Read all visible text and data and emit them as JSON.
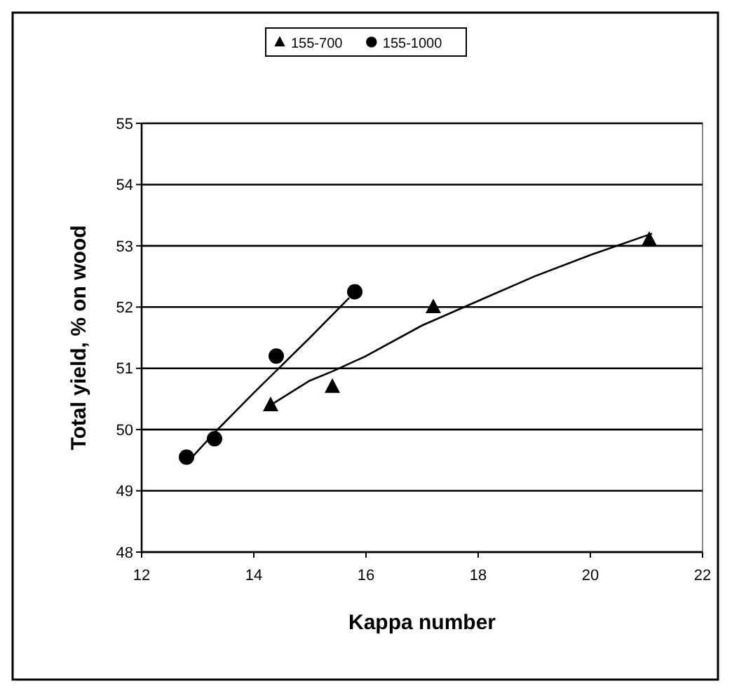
{
  "chart_data": {
    "type": "scatter",
    "xlabel": "Kappa number",
    "ylabel": "Total yield, % on wood",
    "xlim": [
      12,
      22
    ],
    "xticks": [
      12,
      14,
      16,
      18,
      20,
      22
    ],
    "ylim": [
      48,
      55
    ],
    "yticks": [
      48,
      49,
      50,
      51,
      52,
      53,
      54,
      55
    ],
    "grid": "y",
    "legend": "top",
    "series": [
      {
        "name": "155-700",
        "color": "#000000",
        "marker": "triangle",
        "x": [
          14.3,
          15.4,
          17.2,
          21.05
        ],
        "values": [
          50.4,
          50.7,
          52.0,
          53.1
        ]
      },
      {
        "name": "155-1000",
        "color": "#000000",
        "marker": "circle",
        "x": [
          12.8,
          13.3,
          14.4,
          15.8
        ],
        "values": [
          49.55,
          49.85,
          51.2,
          52.25
        ]
      },
      {
        "type": "line",
        "color": "#000000",
        "marker": "none",
        "x": [
          14.3,
          15.0,
          15.4,
          16,
          17,
          18,
          19,
          20,
          21.1
        ],
        "values": [
          50.4,
          50.8,
          50.95,
          51.2,
          51.7,
          52.1,
          52.5,
          52.85,
          53.2
        ]
      },
      {
        "type": "line",
        "color": "#000000",
        "marker": "none",
        "x": [
          12.85,
          13.3,
          14,
          14.5,
          15,
          15.7
        ],
        "values": [
          49.5,
          49.95,
          50.6,
          51.05,
          51.5,
          52.15
        ]
      }
    ]
  }
}
